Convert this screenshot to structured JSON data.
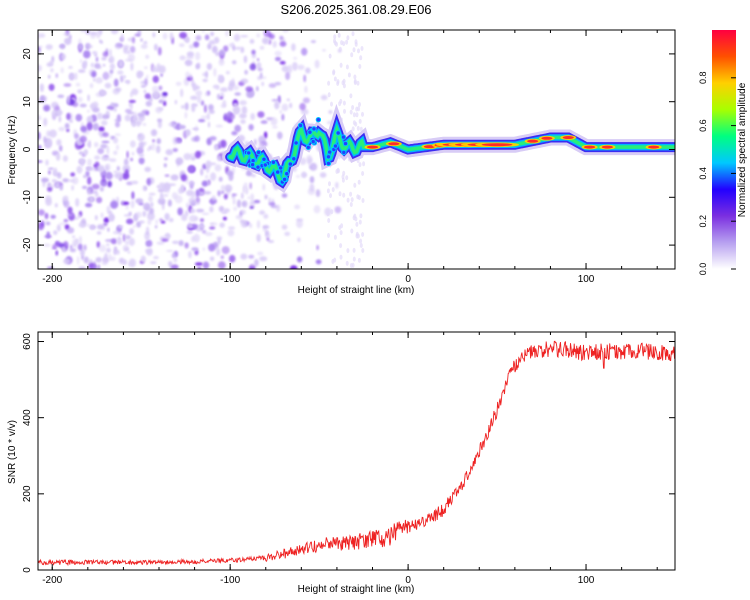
{
  "figure": {
    "title": "S206.2025.361.08.29.E06"
  },
  "chart_data": [
    {
      "type": "heatmap",
      "name": "spectrogram",
      "xlabel": "Height of straight line (km)",
      "ylabel": "Frequency (Hz)",
      "xlim": [
        -208,
        150
      ],
      "ylim": [
        -25,
        25
      ],
      "xticks": [
        -200,
        -100,
        0,
        100
      ],
      "yticks": [
        20,
        10,
        0,
        -10,
        -20
      ],
      "ridge_x": [
        -100,
        -90,
        -80,
        -70,
        -60,
        -55,
        -50,
        -45,
        -40,
        -35,
        -30,
        -20,
        -10,
        0,
        10,
        20,
        40,
        60,
        80,
        90,
        100,
        110,
        130,
        150
      ],
      "ridge_f": [
        -0.5,
        -1.5,
        -3.0,
        -6.0,
        3.5,
        2.0,
        4.5,
        -1.5,
        3.0,
        0.5,
        0.5,
        0.5,
        1.5,
        0.0,
        0.5,
        1.0,
        1.0,
        1.0,
        2.5,
        2.5,
        0.5,
        0.5,
        0.5,
        0.5
      ],
      "colorbar": {
        "label": "Normalized spectral amplitude",
        "range": [
          0.0,
          1.0
        ],
        "ticks": [
          "0.0",
          "0.2",
          "0.4",
          "0.6",
          "0.8"
        ],
        "tick_values": [
          0.0,
          0.2,
          0.4,
          0.6,
          0.8
        ],
        "colors": [
          "#ffffff",
          "#b7a0f0",
          "#7b2fe0",
          "#2200ff",
          "#00c8ff",
          "#00ff80",
          "#a8ff00",
          "#ffd000",
          "#ff5000",
          "#ff0040"
        ]
      }
    },
    {
      "type": "line",
      "name": "snr",
      "xlabel": "Height of straight line (km)",
      "ylabel": "SNR (10 * v/v)",
      "xlim": [
        -208,
        150
      ],
      "ylim": [
        0,
        625
      ],
      "xticks": [
        -200,
        -100,
        0,
        100
      ],
      "yticks": [
        0,
        200,
        400,
        600
      ],
      "color": "#ee2222",
      "x": [
        -208,
        -180,
        -150,
        -120,
        -100,
        -80,
        -70,
        -60,
        -50,
        -40,
        -30,
        -20,
        -10,
        0,
        10,
        20,
        30,
        40,
        50,
        55,
        60,
        65,
        70,
        80,
        90,
        100,
        110,
        120,
        130,
        140,
        150
      ],
      "y": [
        20,
        20,
        20,
        22,
        25,
        32,
        42,
        55,
        65,
        70,
        75,
        80,
        90,
        110,
        130,
        160,
        220,
        310,
        420,
        490,
        540,
        560,
        575,
        580,
        580,
        570,
        575,
        570,
        575,
        570,
        572
      ]
    }
  ]
}
